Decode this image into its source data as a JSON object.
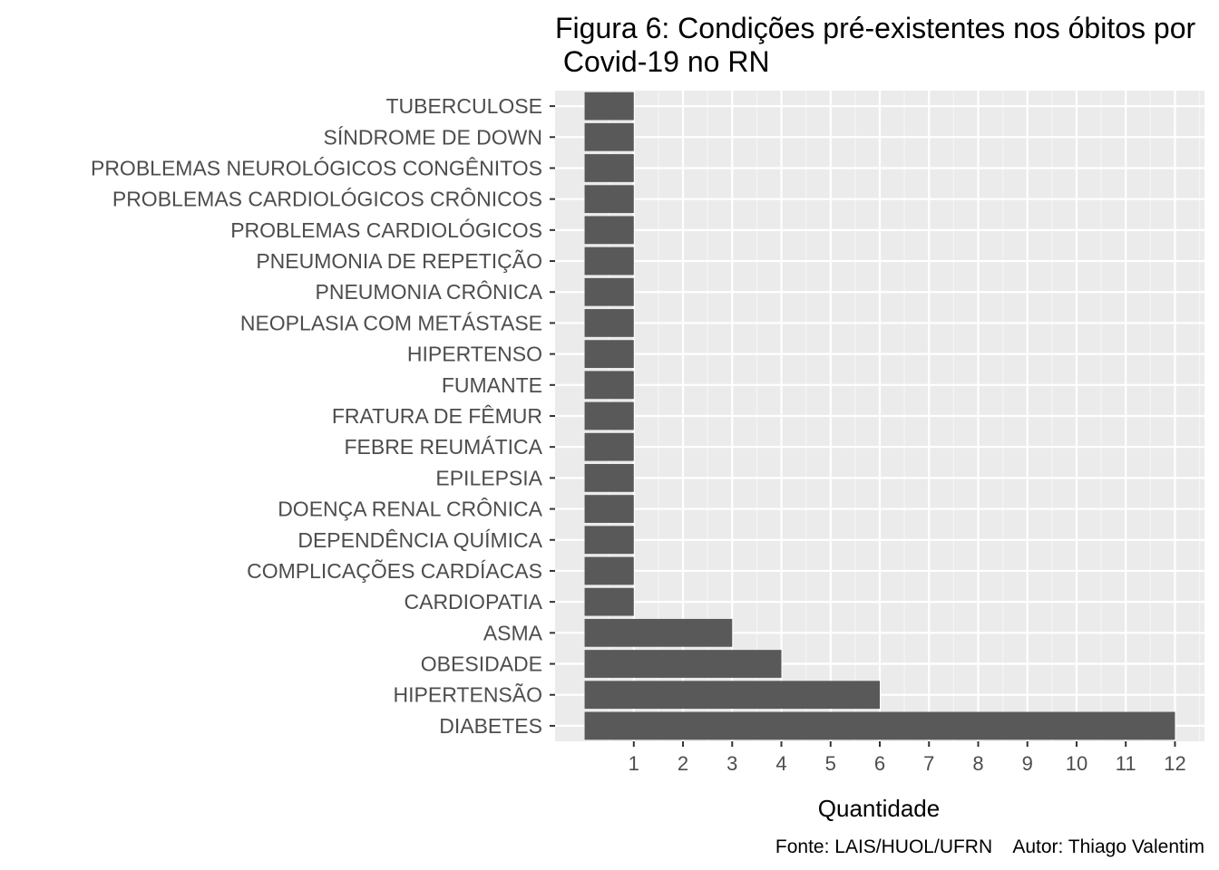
{
  "chart_data": {
    "type": "bar",
    "orientation": "horizontal",
    "title": "Figura 6: Condições pré-existentes nos óbitos por",
    "title_line2": " Covid-19 no RN",
    "xlabel": "Quantidade",
    "ylabel": "",
    "caption": "Fonte: LAIS/HUOL/UFRN    Autor: Thiago Valentim",
    "categories": [
      "DIABETES",
      "HIPERTENSÃO",
      "OBESIDADE",
      "ASMA",
      "CARDIOPATIA",
      "COMPLICAÇÕES CARDÍACAS",
      "DEPENDÊNCIA QUÍMICA",
      "DOENÇA RENAL CRÔNICA",
      "EPILEPSIA",
      "FEBRE REUMÁTICA",
      "FRATURA DE FÊMUR",
      "FUMANTE",
      "HIPERTENSO",
      "NEOPLASIA COM METÁSTASE",
      "PNEUMONIA CRÔNICA",
      "PNEUMONIA DE REPETIÇÃO",
      "PROBLEMAS CARDIOLÓGICOS",
      "PROBLEMAS CARDIOLÓGICOS CRÔNICOS",
      "PROBLEMAS NEUROLÓGICOS CONGÊNITOS",
      "SÍNDROME DE DOWN",
      "TUBERCULOSE"
    ],
    "values": [
      12,
      6,
      4,
      3,
      1,
      1,
      1,
      1,
      1,
      1,
      1,
      1,
      1,
      1,
      1,
      1,
      1,
      1,
      1,
      1,
      1
    ],
    "xticks": [
      1,
      2,
      3,
      4,
      5,
      6,
      7,
      8,
      9,
      10,
      11,
      12
    ],
    "xlim": [
      -0.6,
      12.6
    ],
    "grid": true,
    "legend": "none",
    "colors": {
      "bar": "#595959",
      "panel": "#ebebeb",
      "grid_major": "#ffffff",
      "grid_minor": "#f5f5f5"
    }
  }
}
